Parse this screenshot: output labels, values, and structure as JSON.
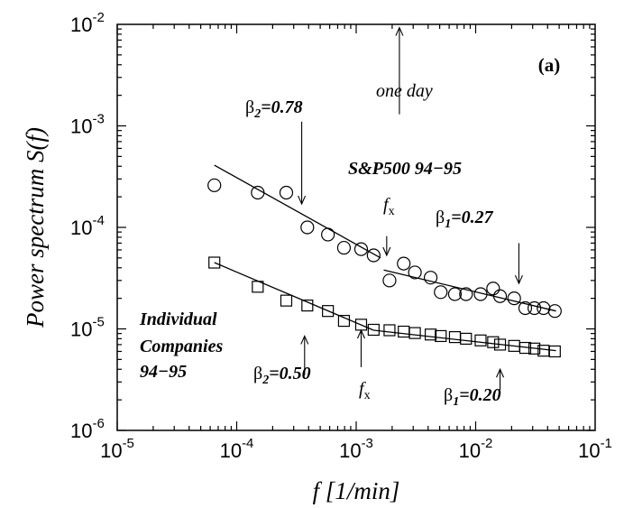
{
  "chart_data": {
    "type": "scatter",
    "panel_label": "(a)",
    "xlabel": "f [1/min]",
    "ylabel": "Power spectrum S(f)",
    "xscale": "log",
    "yscale": "log",
    "xlim": [
      1e-05,
      0.1
    ],
    "ylim": [
      1e-06,
      0.01
    ],
    "x_ticks": [
      {
        "value": 1e-05,
        "mantissa": "10",
        "exp": "-5"
      },
      {
        "value": 0.0001,
        "mantissa": "10",
        "exp": "-4"
      },
      {
        "value": 0.001,
        "mantissa": "10",
        "exp": "-3"
      },
      {
        "value": 0.01,
        "mantissa": "10",
        "exp": "-2"
      },
      {
        "value": 0.1,
        "mantissa": "10",
        "exp": "-1"
      }
    ],
    "y_ticks": [
      {
        "value": 1e-06,
        "mantissa": "10",
        "exp": "-6"
      },
      {
        "value": 1e-05,
        "mantissa": "10",
        "exp": "-5"
      },
      {
        "value": 0.0001,
        "mantissa": "10",
        "exp": "-4"
      },
      {
        "value": 0.001,
        "mantissa": "10",
        "exp": "-3"
      },
      {
        "value": 0.01,
        "mantissa": "10",
        "exp": "-2"
      }
    ],
    "series": [
      {
        "name": "S&P500 94−95",
        "marker": "circle",
        "x": [
          6.5e-05,
          0.00015,
          0.00026,
          0.00039,
          0.00058,
          0.00079,
          0.0011,
          0.0014,
          0.0019,
          0.0025,
          0.0031,
          0.0042,
          0.0051,
          0.0067,
          0.0083,
          0.011,
          0.014,
          0.016,
          0.021,
          0.026,
          0.031,
          0.037,
          0.046
        ],
        "y": [
          0.00026,
          0.00022,
          0.00022,
          0.0001,
          8.5e-05,
          6.3e-05,
          6.1e-05,
          5.3e-05,
          3e-05,
          4.4e-05,
          3.6e-05,
          3.2e-05,
          2.3e-05,
          2.2e-05,
          2.2e-05,
          2.2e-05,
          2.5e-05,
          2.1e-05,
          2e-05,
          1.6e-05,
          1.6e-05,
          1.6e-05,
          1.5e-05
        ]
      },
      {
        "name": "Individual Companies 94−95",
        "marker": "square",
        "x": [
          6.5e-05,
          0.00015,
          0.00026,
          0.00039,
          0.00058,
          0.00079,
          0.0011,
          0.0014,
          0.0019,
          0.0025,
          0.0031,
          0.0042,
          0.0051,
          0.0067,
          0.0083,
          0.011,
          0.014,
          0.016,
          0.021,
          0.026,
          0.031,
          0.037,
          0.046
        ],
        "y": [
          4.5e-05,
          2.6e-05,
          1.9e-05,
          1.7e-05,
          1.5e-05,
          1.2e-05,
          1.1e-05,
          9.8e-06,
          9.7e-06,
          9.4e-06,
          9.1e-06,
          8.8e-06,
          8.5e-06,
          8.3e-06,
          8e-06,
          7.7e-06,
          7.4e-06,
          7e-06,
          6.8e-06,
          6.5e-06,
          6.4e-06,
          6.1e-06,
          6e-06
        ]
      }
    ],
    "fits": [
      {
        "x": [
          6.5e-05,
          0.0016
        ],
        "y": [
          0.00041,
          5e-05
        ]
      },
      {
        "x": [
          0.0017,
          0.047
        ],
        "y": [
          3.8e-05,
          1.5e-05
        ]
      },
      {
        "x": [
          6.5e-05,
          0.0014
        ],
        "y": [
          4.5e-05,
          9.7e-06
        ]
      },
      {
        "x": [
          0.0014,
          0.047
        ],
        "y": [
          9.7e-06,
          6.1e-06
        ]
      }
    ],
    "annotations": [
      {
        "greek": "β",
        "sub": "2",
        "text": "=0.78",
        "arrow_x": 0.00035,
        "arrow_from": 0.0011,
        "arrow_to": 0.00017
      },
      {
        "greek": "β",
        "sub": "1",
        "text": "=0.27",
        "arrow_x": 0.023,
        "arrow_from": 7e-05,
        "arrow_to": 2.8e-05
      },
      {
        "greek": "β",
        "sub": "2",
        "text": "=0.50",
        "arrow_x": 0.00037,
        "arrow_from": 3.5e-06,
        "arrow_to": 8.5e-06
      },
      {
        "greek": "β",
        "sub": "1",
        "text": "=0.20",
        "arrow_x": 0.016,
        "arrow_from": 2.5e-06,
        "arrow_to": 4e-06
      },
      {
        "label": "one day",
        "arrow_x": 0.0023,
        "arrow_from": 0.0013,
        "arrow_to": 0.0093
      },
      {
        "label_f": "f",
        "sub": "x",
        "arrow_x": 0.0018,
        "arrow_from": 8.2e-05,
        "arrow_to": 5.3e-05
      },
      {
        "label_f": "f",
        "sub": "x",
        "arrow_x": 0.0011,
        "arrow_from": 4.2e-06,
        "arrow_to": 9.7e-06
      }
    ],
    "series_labels": {
      "sp500": "S&P500 94−95",
      "companies_line1": "Individual",
      "companies_line2": "Companies",
      "companies_line3": "94−95"
    }
  }
}
